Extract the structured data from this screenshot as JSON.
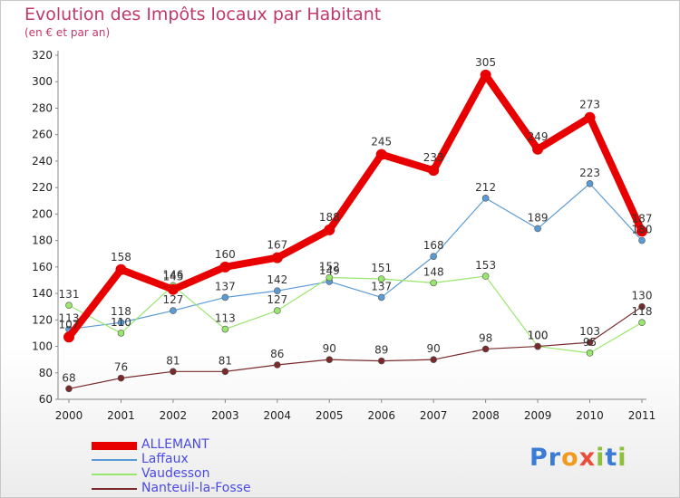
{
  "header": {
    "title": "Evolution des Impôts locaux par Habitant",
    "subtitle": "(en € et par an)"
  },
  "logo": {
    "letters": [
      {
        "ch": "P",
        "color": "#3a7bd5"
      },
      {
        "ch": "r",
        "color": "#3a7bd5"
      },
      {
        "ch": "o",
        "color": "#f29a1e"
      },
      {
        "ch": "x",
        "color": "#e94e3c"
      },
      {
        "ch": "i",
        "color": "#8bbf3c"
      },
      {
        "ch": "t",
        "color": "#3a7bd5"
      },
      {
        "ch": "i",
        "color": "#8bbf3c"
      }
    ]
  },
  "chart_data": {
    "type": "line",
    "title": "Evolution des Impôts locaux par Habitant",
    "subtitle": "(en € et par an)",
    "xlabel": "",
    "ylabel": "",
    "categories": [
      "2000",
      "2001",
      "2002",
      "2003",
      "2004",
      "2005",
      "2006",
      "2007",
      "2008",
      "2009",
      "2010",
      "2011"
    ],
    "ylim": [
      60,
      320
    ],
    "yticks": [
      60,
      80,
      100,
      120,
      140,
      160,
      180,
      200,
      220,
      240,
      260,
      280,
      300,
      320
    ],
    "grid": false,
    "legend_position": "bottom-left",
    "series": [
      {
        "name": "ALLEMANT",
        "color": "#e80000",
        "width": 8,
        "marker": 6,
        "values": [
          107,
          158,
          143,
          160,
          167,
          188,
          245,
          233,
          305,
          249,
          273,
          187
        ],
        "labels": [
          "107",
          "158",
          "143",
          "160",
          "167",
          "188",
          "245",
          "233",
          "305",
          "249",
          "273",
          "187"
        ]
      },
      {
        "name": "Laffaux",
        "color": "#5b9bd5",
        "width": 1.2,
        "marker": 3.5,
        "values": [
          113,
          118,
          127,
          137,
          142,
          149,
          137,
          168,
          212,
          189,
          223,
          180
        ],
        "labels": [
          "113",
          "118",
          "127",
          "137",
          "142",
          "149",
          "137",
          "168",
          "212",
          "189",
          "223",
          "180"
        ]
      },
      {
        "name": "Vaudesson",
        "color": "#99e66c",
        "width": 1.2,
        "marker": 3.5,
        "values": [
          131,
          110,
          146,
          113,
          127,
          152,
          151,
          148,
          153,
          100,
          95,
          118
        ],
        "labels": [
          "131",
          "110",
          "146",
          "113",
          "127",
          "152",
          "151",
          "148",
          "153",
          "100",
          "95",
          "118"
        ]
      },
      {
        "name": "Nanteuil-la-Fosse",
        "color": "#7a2a2a",
        "width": 1.2,
        "marker": 3.5,
        "values": [
          68,
          76,
          81,
          81,
          86,
          90,
          89,
          90,
          98,
          100,
          103,
          130
        ],
        "labels": [
          "68",
          "76",
          "81",
          "81",
          "86",
          "90",
          "89",
          "90",
          "98",
          "100",
          "103",
          "130"
        ]
      }
    ]
  }
}
